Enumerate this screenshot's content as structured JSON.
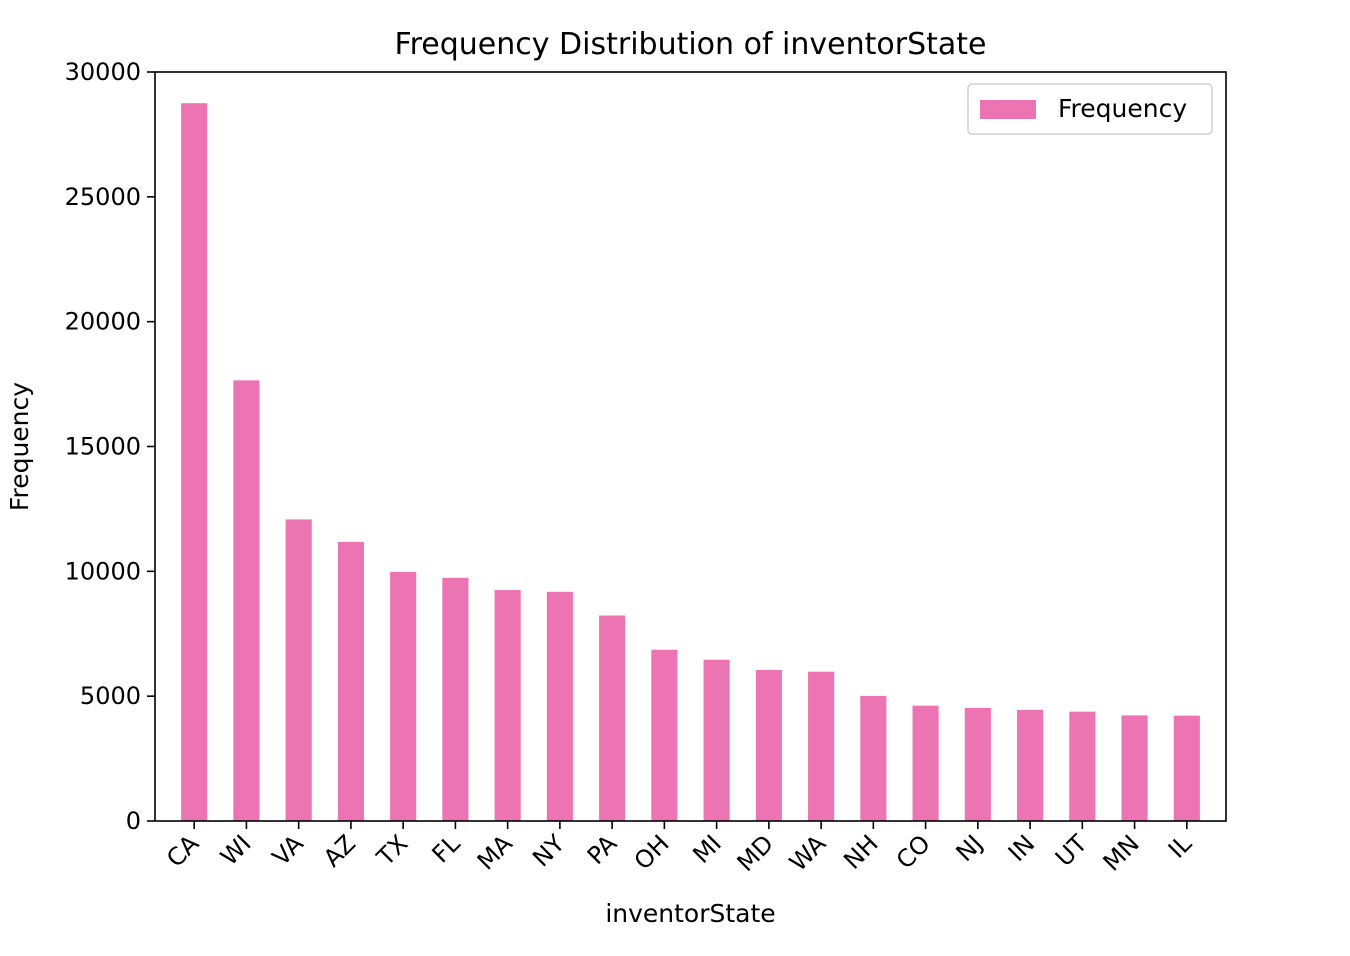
{
  "chart_data": {
    "type": "bar",
    "title": "Frequency Distribution of inventorState",
    "xlabel": "inventorState",
    "ylabel": "Frequency",
    "categories": [
      "CA",
      "WI",
      "VA",
      "AZ",
      "TX",
      "FL",
      "MA",
      "NY",
      "PA",
      "OH",
      "MI",
      "MD",
      "WA",
      "NH",
      "CO",
      "NJ",
      "IN",
      "UT",
      "MN",
      "IL"
    ],
    "series": [
      {
        "name": "Frequency",
        "values": [
          28750,
          17650,
          12080,
          11180,
          9980,
          9740,
          9250,
          9180,
          8230,
          6860,
          6460,
          6050,
          5980,
          5010,
          4620,
          4530,
          4450,
          4380,
          4230,
          4220
        ]
      }
    ],
    "ylim": [
      0,
      30000
    ],
    "yticks": [
      0,
      5000,
      10000,
      15000,
      20000,
      25000,
      30000
    ],
    "legend": "top-right",
    "grid": false,
    "colors": {
      "bar": "#ec74b2",
      "axis": "#000000",
      "legend_border": "#d0d0d0"
    }
  }
}
